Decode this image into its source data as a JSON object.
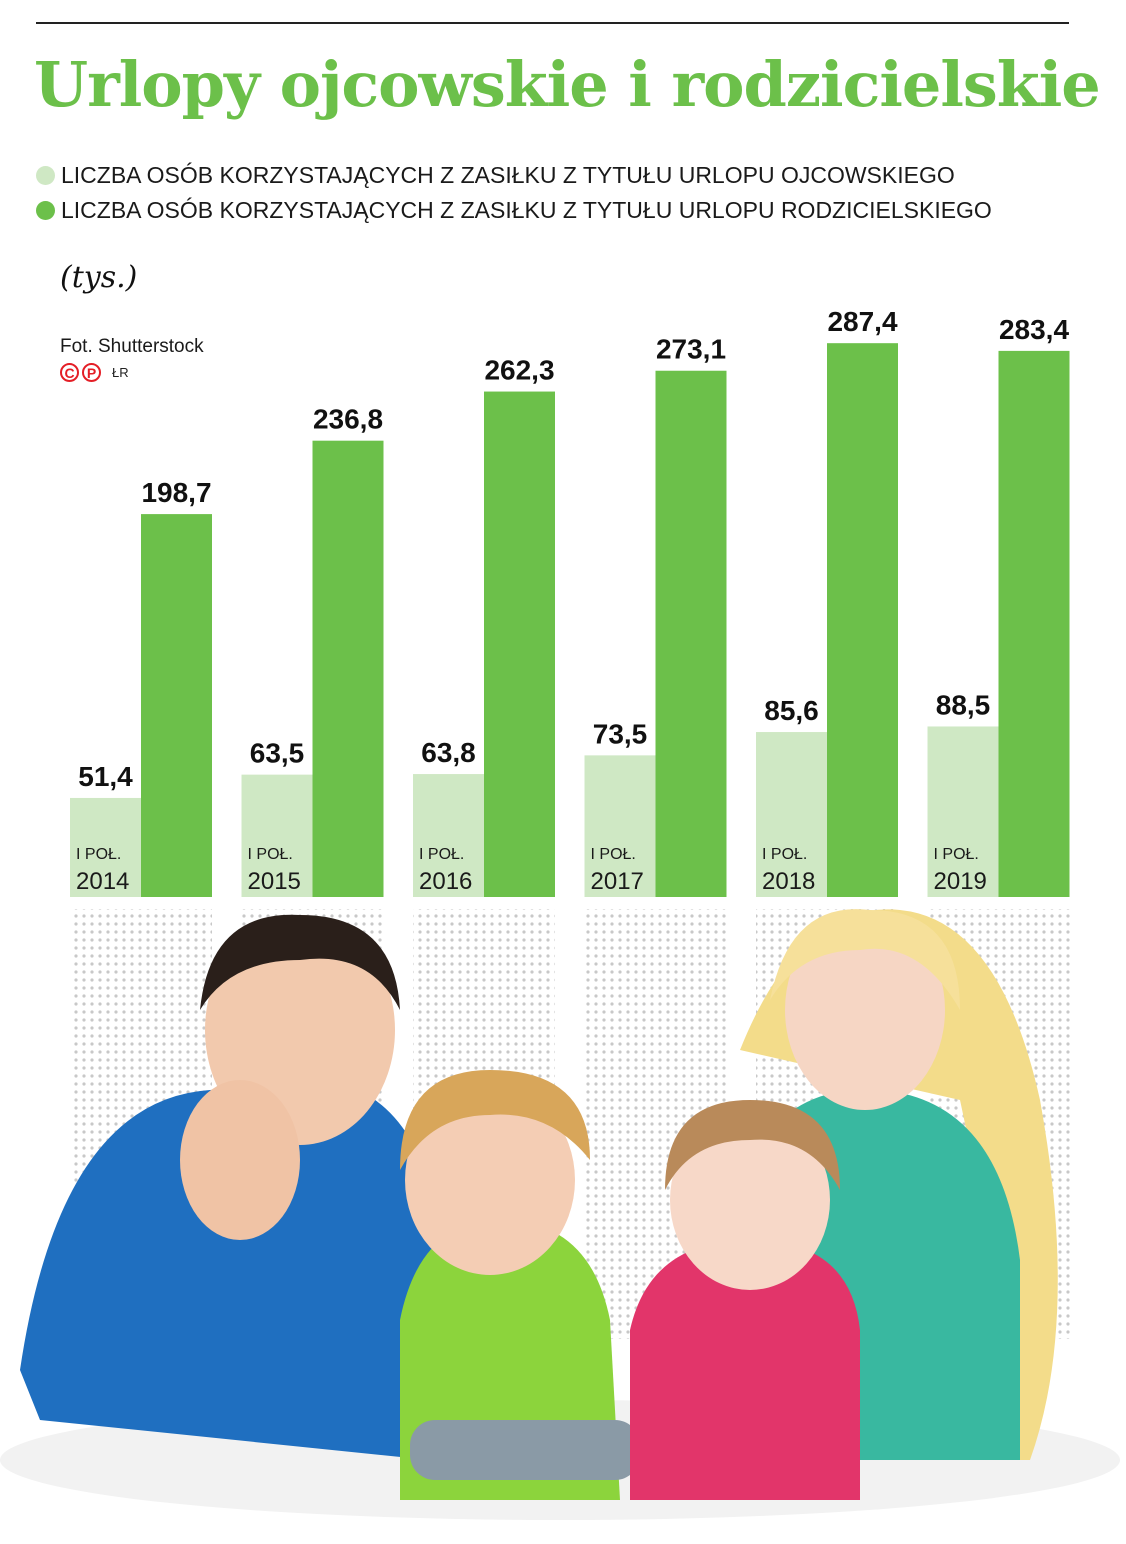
{
  "title": "Urlopy ojcowskie i rodzicielskie",
  "unit_label": "(tys.)",
  "credit": "Fot. Shutterstock",
  "copyright_marks": [
    "C",
    "P"
  ],
  "author": "ŁR",
  "colors": {
    "title": "#6cc04a",
    "ojcowski": "#cfe8c4",
    "rodzicielski": "#6cc04a",
    "text": "#111111"
  },
  "chart_data": {
    "type": "bar",
    "categories": [
      "I POŁ. 2014",
      "I POŁ. 2015",
      "I POŁ. 2016",
      "I POŁ. 2017",
      "I POŁ. 2018",
      "I POŁ. 2019"
    ],
    "category_labels": [
      {
        "line1": "I POŁ.",
        "line2": "2014"
      },
      {
        "line1": "I POŁ.",
        "line2": "2015"
      },
      {
        "line1": "I POŁ.",
        "line2": "2016"
      },
      {
        "line1": "I POŁ.",
        "line2": "2017"
      },
      {
        "line1": "I POŁ.",
        "line2": "2018"
      },
      {
        "line1": "I POŁ.",
        "line2": "2019"
      }
    ],
    "series": [
      {
        "name": "LICZBA OSÓB KORZYSTAJĄCYCH Z ZASIŁKU Z TYTUŁU URLOPU OJCOWSKIEGO",
        "values": [
          51.4,
          63.5,
          63.8,
          73.5,
          85.6,
          88.5
        ],
        "labels": [
          "51,4",
          "63,5",
          "63,8",
          "73,5",
          "85,6",
          "88,5"
        ]
      },
      {
        "name": "LICZBA OSÓB KORZYSTAJĄCYCH Z ZASIŁKU Z TYTUŁU URLOPU RODZICIELSKIEGO",
        "values": [
          198.7,
          236.8,
          262.3,
          273.1,
          287.4,
          283.4
        ],
        "labels": [
          "198,7",
          "236,8",
          "262,3",
          "273,1",
          "287,4",
          "283,4"
        ]
      }
    ],
    "ylim": [
      0,
      300
    ],
    "grid": false,
    "legend_position": "top-left"
  }
}
